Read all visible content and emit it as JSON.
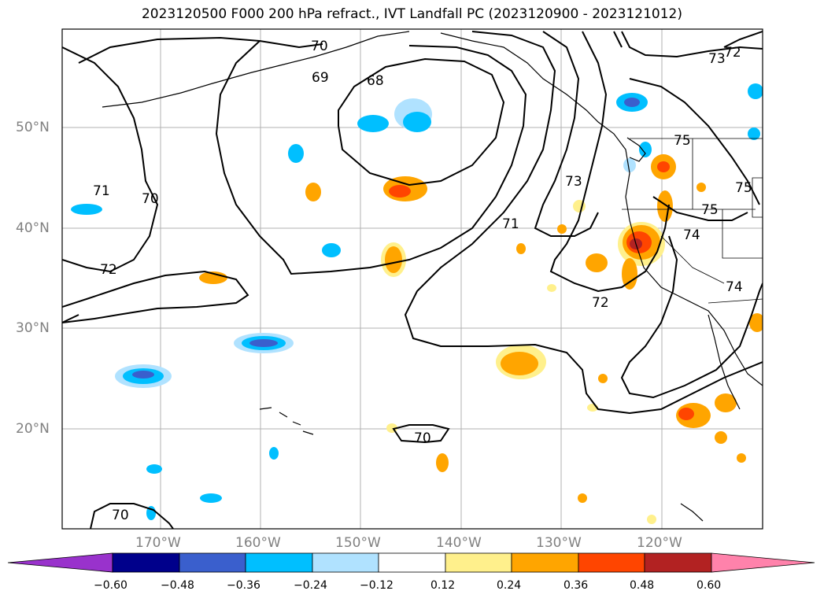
{
  "title": "2023120500 F000 200 hPa refract., IVT Landfall PC (2023120900 - 2023121012)",
  "lat_labels": [
    "50°N",
    "40°N",
    "30°N",
    "20°N"
  ],
  "lon_labels": [
    "170°W",
    "160°W",
    "150°W",
    "140°W",
    "130°W",
    "120°W"
  ],
  "contour_labels": [
    "70",
    "69",
    "68",
    "71",
    "70",
    "72",
    "71",
    "73",
    "73",
    "72",
    "75",
    "75",
    "75",
    "74",
    "72",
    "74",
    "70",
    "70"
  ],
  "colorbar": {
    "ticks": [
      "−0.60",
      "−0.48",
      "−0.36",
      "−0.24",
      "−0.12",
      "0.12",
      "0.24",
      "0.36",
      "0.48",
      "0.60"
    ],
    "colors": [
      "#9932cc",
      "#00008b",
      "#3a5fcd",
      "#00bfff",
      "#b0e2ff",
      "#ffffff",
      "#fff08c",
      "#ffa500",
      "#ff4500",
      "#b22222",
      "#ff82ab"
    ]
  }
}
